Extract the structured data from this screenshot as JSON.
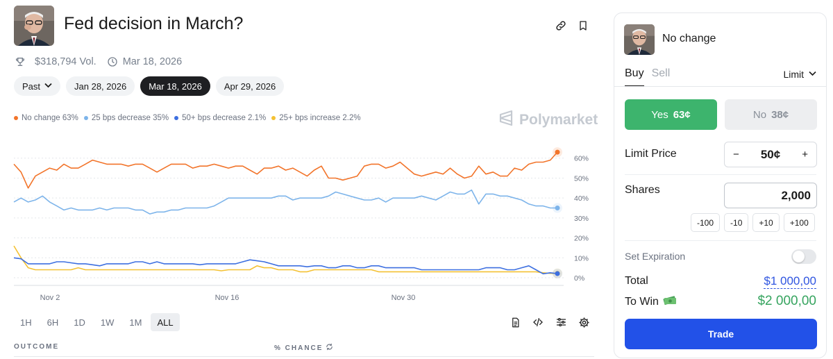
{
  "market": {
    "title": "Fed decision in March?",
    "volume": "$318,794 Vol.",
    "end_date": "Mar 18, 2026",
    "filter_label": "Past",
    "date_pills": [
      "Jan 28, 2026",
      "Mar 18, 2026",
      "Apr 29, 2026"
    ],
    "active_date": "Mar 18, 2026"
  },
  "brand": {
    "name": "Polymarket"
  },
  "chart_data": {
    "type": "line",
    "x_labels": [
      "Nov 2",
      "Nov 16",
      "Nov 30"
    ],
    "y_ticks": [
      "60%",
      "50%",
      "40%",
      "30%",
      "20%",
      "10%",
      "0%"
    ],
    "ylim": [
      0,
      65
    ],
    "series": [
      {
        "name": "No change",
        "legend": "No change 63%",
        "color": "#f2742a",
        "current": 63,
        "values": [
          57,
          53,
          45,
          51,
          53,
          55,
          54,
          57,
          55,
          55,
          57,
          59,
          58,
          57,
          57,
          57,
          56,
          57,
          57,
          55,
          53,
          55,
          57,
          57,
          57,
          55,
          56,
          56,
          57,
          56,
          55,
          56,
          56,
          54,
          52,
          55,
          55,
          56,
          54,
          55,
          53,
          51,
          54,
          56,
          50,
          50,
          49,
          50,
          51,
          56,
          57,
          57,
          55,
          56,
          58,
          55,
          52,
          51,
          52,
          53,
          52,
          55,
          52,
          50,
          51,
          56,
          52,
          53,
          51,
          51,
          55,
          54,
          57,
          58,
          58,
          59,
          63
        ]
      },
      {
        "name": "25 bps decrease",
        "legend": "25 bps decrease 35%",
        "color": "#7db4ea",
        "current": 35,
        "values": [
          38,
          40,
          38,
          39,
          41,
          38,
          36,
          34,
          35,
          34,
          34,
          34,
          35,
          34,
          35,
          35,
          35,
          34,
          34,
          32,
          33,
          33,
          34,
          34,
          35,
          35,
          35,
          35,
          36,
          38,
          40,
          40,
          40,
          40,
          40,
          40,
          40,
          41,
          41,
          39,
          40,
          40,
          40,
          40,
          41,
          43,
          42,
          41,
          40,
          39,
          39,
          40,
          38,
          40,
          40,
          40,
          40,
          41,
          40,
          39,
          41,
          43,
          42,
          42,
          44,
          37,
          42,
          42,
          41,
          41,
          40,
          39,
          37,
          36,
          36,
          35,
          35
        ]
      },
      {
        "name": "50+ bps decrease",
        "legend": "50+ bps decrease 2.1%",
        "color": "#3d6fe0",
        "current": 2.1,
        "values": [
          10,
          9.5,
          7,
          7,
          7,
          7,
          8,
          8,
          7.5,
          7,
          7,
          6.5,
          6,
          7,
          7,
          7,
          7,
          8,
          8,
          7,
          8,
          7,
          7,
          7,
          7,
          7,
          6.5,
          7,
          7,
          7,
          7,
          7,
          8,
          9,
          8.5,
          8,
          7,
          6,
          6,
          6,
          6,
          5.5,
          6,
          6,
          5,
          5,
          6,
          6,
          5,
          5,
          6,
          6,
          5,
          5,
          5,
          5,
          5,
          4,
          4,
          4,
          4,
          4,
          4,
          4,
          4,
          4,
          5,
          5,
          5,
          4,
          4,
          5,
          6,
          4,
          2,
          2.5,
          2.1
        ]
      },
      {
        "name": "25+ bps increase",
        "legend": "25+ bps increase 2.2%",
        "color": "#f4c132",
        "current": 2.2,
        "values": [
          16,
          10,
          5,
          4,
          4,
          4,
          4,
          4,
          4,
          5,
          4,
          4,
          4,
          4,
          4,
          4,
          4,
          4,
          4,
          4,
          4,
          4,
          4,
          4,
          4,
          4,
          4,
          4,
          4,
          3.5,
          4,
          4,
          4,
          4,
          6,
          5,
          5,
          4,
          4,
          4,
          3,
          3,
          4,
          4,
          4,
          4,
          4,
          4,
          4,
          4,
          4,
          3,
          3,
          3,
          3,
          3,
          3,
          3,
          3,
          3,
          3,
          3,
          3,
          3,
          3,
          3,
          3,
          3,
          3,
          3,
          3,
          3,
          3,
          3,
          2.5,
          2.2,
          2.2
        ]
      }
    ]
  },
  "ranges": [
    "1H",
    "6H",
    "1D",
    "1W",
    "1M",
    "ALL"
  ],
  "active_range": "ALL",
  "table": {
    "outcome_label": "OUTCOME",
    "chance_label": "% CHANCE"
  },
  "trade": {
    "outcome_name": "No change",
    "tabs": [
      "Buy",
      "Sell"
    ],
    "active_tab": "Buy",
    "order_type": "Limit",
    "yes_label": "Yes",
    "yes_price": "63¢",
    "no_label": "No",
    "no_price": "38¢",
    "limit_price_label": "Limit Price",
    "limit_price": "50¢",
    "minus": "−",
    "plus": "+",
    "shares_label": "Shares",
    "shares": "2,000",
    "quick_buttons": [
      "-100",
      "-10",
      "+10",
      "+100"
    ],
    "expiration_label": "Set Expiration",
    "expiration_enabled": false,
    "total_label": "Total",
    "total_value": "$1 000,00",
    "to_win_label": "To Win",
    "to_win_value": "$2 000,00",
    "trade_label": "Trade"
  }
}
